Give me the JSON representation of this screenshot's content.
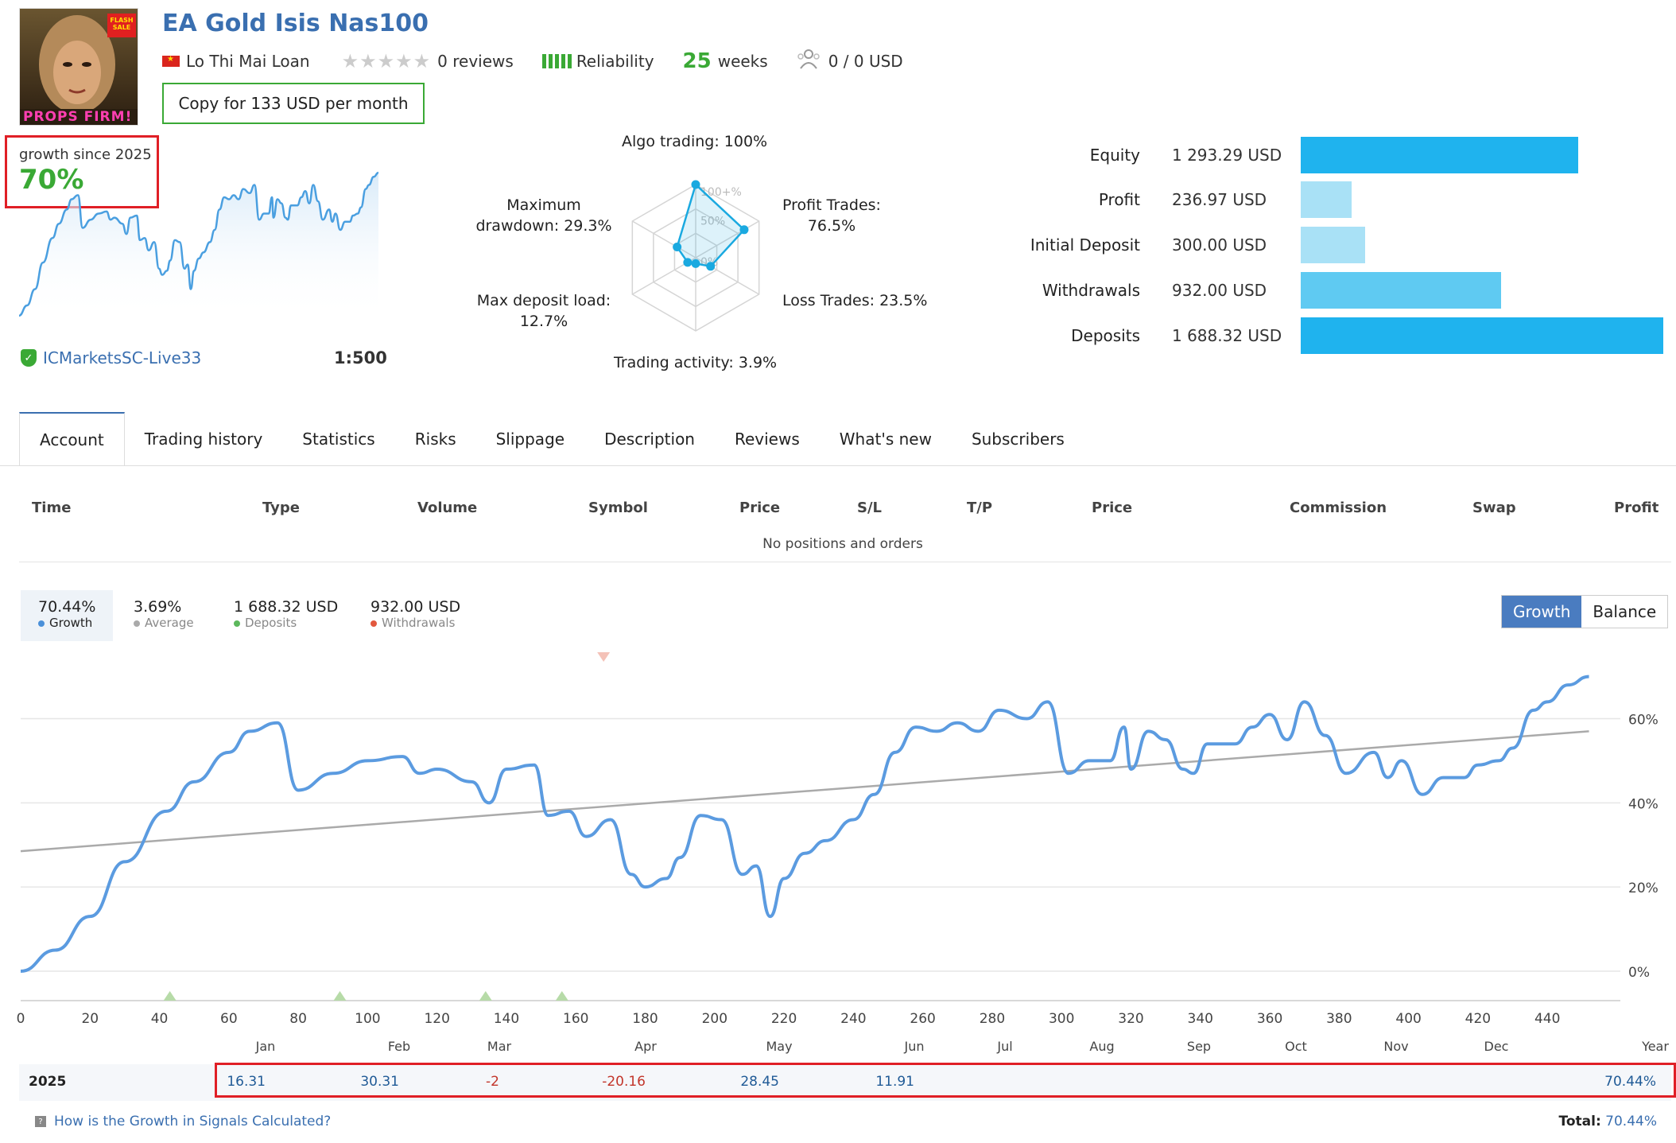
{
  "header": {
    "avatar_text": "PROPS FIRM!",
    "avatar_badge": "FLASH SALE",
    "title": "EA Gold Isis Nas100",
    "author": "Lo Thi Mai Loan",
    "rating_stars": 0,
    "reviews": "0 reviews",
    "reliability": "Reliability",
    "weeks_num": "25",
    "weeks_label": "weeks",
    "subscribers": "0 / 0 USD",
    "copy_button": "Copy for 133 USD per month"
  },
  "growth_card": {
    "label": "growth since 2025",
    "value": "70%",
    "broker": "ICMarketsSC-Live33",
    "leverage": "1:500",
    "line_color": "#4a9fe0"
  },
  "radar": {
    "axes": [
      {
        "label": "Algo trading: 100%",
        "value": 100
      },
      {
        "label": "Profit Trades: 76.5%",
        "value": 76.5
      },
      {
        "label": "Loss Trades: 23.5%",
        "value": 23.5
      },
      {
        "label": "Trading activity: 3.9%",
        "value": 3.9
      },
      {
        "label": "Max deposit load: 12.7%",
        "value": 12.7
      },
      {
        "label": "Maximum drawdown: 29.3%",
        "value": 29.3
      }
    ],
    "ring_labels": [
      "100+%",
      "50%",
      "0%"
    ],
    "color": "#1aa9e0"
  },
  "balance_summary": [
    {
      "name": "Equity",
      "value": "1 293.29 USD",
      "amount": 1293.29,
      "color": "#1fb3ee"
    },
    {
      "name": "Profit",
      "value": "236.97 USD",
      "amount": 236.97,
      "color": "#a9e1f6"
    },
    {
      "name": "Initial Deposit",
      "value": "300.00 USD",
      "amount": 300.0,
      "color": "#a9e1f6"
    },
    {
      "name": "Withdrawals",
      "value": "932.00 USD",
      "amount": 932.0,
      "color": "#5fcaf2"
    },
    {
      "name": "Deposits",
      "value": "1 688.32 USD",
      "amount": 1688.32,
      "color": "#1fb3ee"
    }
  ],
  "tabs": [
    "Account",
    "Trading history",
    "Statistics",
    "Risks",
    "Slippage",
    "Description",
    "Reviews",
    "What's new",
    "Subscribers"
  ],
  "positions_table": {
    "headers": [
      "Time",
      "Type",
      "Volume",
      "Symbol",
      "Price",
      "S/L",
      "T/P",
      "Price",
      "Commission",
      "Swap",
      "Profit"
    ],
    "empty_text": "No positions and orders"
  },
  "summary_stats": [
    {
      "value": "70.44%",
      "label": "Growth",
      "color": "#4a90d9"
    },
    {
      "value": "3.69%",
      "label": "Average",
      "color": "#aaaaaa"
    },
    {
      "value": "1 688.32 USD",
      "label": "Deposits",
      "color": "#5cb85c"
    },
    {
      "value": "932.00 USD",
      "label": "Withdrawals",
      "color": "#e2583e"
    }
  ],
  "toggle": {
    "growth": "Growth",
    "balance": "Balance"
  },
  "chart_data": {
    "type": "line",
    "series": [
      {
        "name": "Growth",
        "color": "#5b9be0"
      }
    ],
    "x": [
      0,
      10,
      20,
      30,
      42,
      50,
      60,
      66,
      74,
      80,
      90,
      100,
      110,
      115,
      120,
      130,
      135,
      140,
      148,
      152,
      158,
      163,
      170,
      176,
      180,
      186,
      190,
      196,
      202,
      208,
      212,
      216,
      220,
      226,
      232,
      240,
      246,
      252,
      258,
      264,
      270,
      276,
      282,
      290,
      296,
      302,
      308,
      314,
      318,
      320,
      325,
      330,
      335,
      338,
      342,
      350,
      355,
      360,
      365,
      370,
      376,
      382,
      390,
      394,
      398,
      404,
      410,
      416,
      420,
      426,
      430,
      436,
      440,
      446,
      452
    ],
    "y": [
      0,
      5,
      13,
      26,
      38,
      45,
      52,
      57,
      59,
      43,
      47,
      50,
      51,
      47,
      48,
      45,
      40,
      48,
      49,
      37,
      38,
      32,
      36,
      23,
      20,
      22,
      27,
      37,
      36,
      23,
      25,
      13,
      22,
      28,
      31,
      36,
      42,
      52,
      58,
      57,
      59,
      57,
      62,
      60,
      64,
      47,
      50,
      50,
      58,
      48,
      57,
      55,
      48,
      47,
      54,
      54,
      58,
      61,
      55,
      64,
      56,
      47,
      52,
      46,
      50,
      42,
      46,
      46,
      49,
      50,
      53,
      62,
      64,
      68,
      70
    ],
    "trend": {
      "start": 28.5,
      "end": 57
    },
    "markers_deposit_x": [
      43,
      92,
      134,
      156
    ],
    "marker_withdrawal_x": 168,
    "x_ticks": [
      0,
      20,
      40,
      60,
      80,
      100,
      120,
      140,
      160,
      180,
      200,
      220,
      240,
      260,
      280,
      300,
      320,
      340,
      360,
      380,
      400,
      420,
      440
    ],
    "xlim": [
      0,
      456
    ],
    "y_ticks": [
      "0%",
      "20%",
      "40%",
      "60%"
    ],
    "ylim": [
      -7,
      72
    ]
  },
  "yearly": {
    "months": [
      "Jan",
      "Feb",
      "Mar",
      "Apr",
      "May",
      "Jun",
      "Jul",
      "Aug",
      "Sep",
      "Oct",
      "Nov",
      "Dec",
      "Year"
    ],
    "year": "2025",
    "values": [
      "16.31",
      "30.31",
      "-2",
      "-20.16",
      "28.45",
      "11.91",
      "",
      "",
      "",
      "",
      "",
      "",
      "70.44%"
    ]
  },
  "footer": {
    "help_link": "How is the Growth in Signals Calculated?",
    "total_label": "Total:",
    "total_value": "70.44%"
  }
}
